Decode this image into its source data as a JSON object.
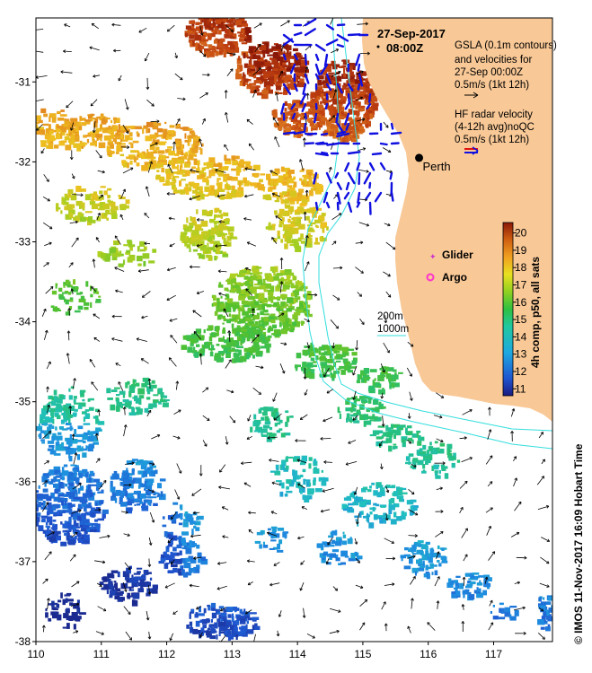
{
  "map": {
    "date": "27-Sep-2017",
    "time": "08:00Z",
    "place_label": "Perth",
    "x_ticks": [
      "110",
      "111",
      "112",
      "113",
      "114",
      "115",
      "116",
      "117"
    ],
    "y_ticks": [
      "-31",
      "-32",
      "-33",
      "-34",
      "-35",
      "-36",
      "-37",
      "-38"
    ],
    "x_range": [
      110,
      117.9
    ],
    "y_range": [
      -38,
      -30.2
    ],
    "perth": [
      115.86,
      -31.95
    ]
  },
  "legend": {
    "gsla_lines": [
      "GSLA (0.1m contours)",
      "and velocities for",
      "27-Sep 00:00Z",
      "0.5m/s (1kt 12h)"
    ],
    "hf_lines": [
      "HF radar velocity",
      "(4-12h avg)noQC",
      "0.5m/s (1kt 12h)"
    ],
    "glider_label": "Glider",
    "argo_label": "Argo",
    "isobath_200": "200m",
    "isobath_1000": "1000m"
  },
  "colorbar": {
    "label": "4h comp, p50, all sats",
    "ticks": [
      "20",
      "19",
      "18",
      "17",
      "16",
      "15",
      "14",
      "13",
      "12",
      "11"
    ],
    "min": 10.6,
    "max": 20.6
  },
  "credit": "© IMOS 11-Nov-2017 16:09 Hobart Time",
  "colors": {
    "land": "#f8c896",
    "hf_radar": "#1010e0",
    "isobath": "#33dddd",
    "glider": "#cc33cc",
    "argo": "#ff33cc"
  }
}
